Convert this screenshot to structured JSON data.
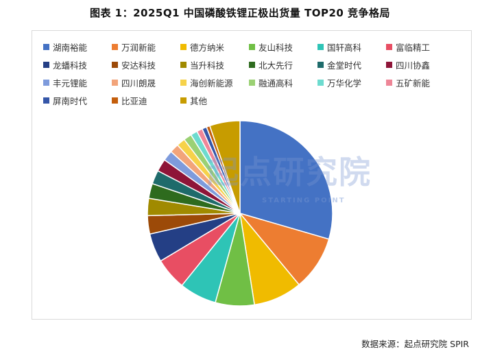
{
  "chart_data": {
    "type": "pie",
    "title": "图表 1：2025Q1 中国磷酸铁锂正极出货量 TOP20 竞争格局",
    "legend_placement": "top",
    "categories": [
      "湖南裕能",
      "万润新能",
      "德方纳米",
      "友山科技",
      "国轩高科",
      "富临精工",
      "龙蟠科技",
      "安达科技",
      "当升科技",
      "北大先行",
      "金堂时代",
      "四川协鑫",
      "丰元锂能",
      "四川朗晟",
      "海创新能源",
      "融通高科",
      "万华化学",
      "五矿新能",
      "屏南时代",
      "比亚迪",
      "其他"
    ],
    "values": [
      29.5,
      9.5,
      8.5,
      6.8,
      6.5,
      5.6,
      5.0,
      3.2,
      3.0,
      2.6,
      2.4,
      2.2,
      1.8,
      1.6,
      1.5,
      1.4,
      1.2,
      1.0,
      0.8,
      0.6,
      5.3
    ],
    "colors": [
      "#4472C4",
      "#ED7D31",
      "#F0BB00",
      "#70BF45",
      "#2EC4B6",
      "#E84E63",
      "#243F85",
      "#9C4A08",
      "#A08A00",
      "#2E6B1E",
      "#1E6B6B",
      "#8E1538",
      "#7E9BDC",
      "#F2A47A",
      "#F6D24A",
      "#9BD174",
      "#6DDBCF",
      "#EE8697",
      "#3556A8",
      "#C45E0C",
      "#C79C00"
    ]
  },
  "watermark": {
    "main": "起点研究院",
    "sub": "STARTING POINT"
  },
  "source": "数据来源：起点研究院 SPIR"
}
